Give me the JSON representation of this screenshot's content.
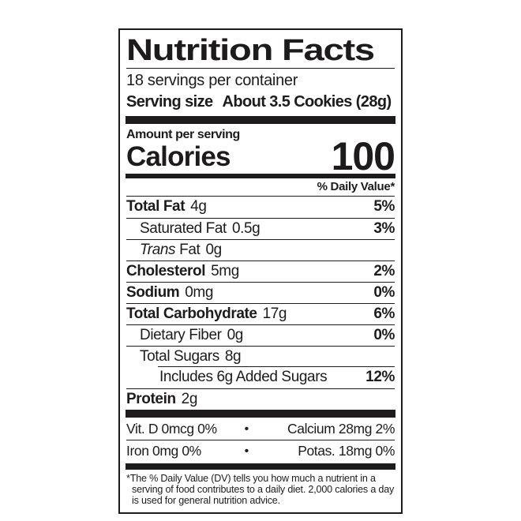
{
  "colors": {
    "ink": "#1d1b1b",
    "background": "#ffffff"
  },
  "label": {
    "title": "Nutrition Facts",
    "servings_per_container": "18 servings per container",
    "serving_size": {
      "label": "Serving size",
      "value": "About 3.5 Cookies (28g)"
    },
    "calories": {
      "heading": "Amount per serving",
      "label": "Calories",
      "value": "100"
    },
    "daily_value_header": "% Daily Value*",
    "nutrients": [
      {
        "name": "Total Fat",
        "amount": "4g",
        "dv": "5%"
      },
      {
        "name": "Saturated Fat",
        "amount": "0.5g",
        "dv": "3%"
      },
      {
        "name_italic": "Trans",
        "name": "Fat",
        "amount": "0g",
        "dv": ""
      },
      {
        "name": "Cholesterol",
        "amount": "5mg",
        "dv": "2%"
      },
      {
        "name": "Sodium",
        "amount": "0mg",
        "dv": "0%"
      },
      {
        "name": "Total Carbohydrate",
        "amount": "17g",
        "dv": "6%"
      },
      {
        "name": "Dietary Fiber",
        "amount": "0g",
        "dv": "0%"
      },
      {
        "name": "Total Sugars",
        "amount": "8g",
        "dv": ""
      },
      {
        "name": "Includes 6g Added Sugars",
        "amount": "",
        "dv": "12%"
      },
      {
        "name": "Protein",
        "amount": "2g",
        "dv": ""
      }
    ],
    "micronutrients": [
      {
        "left": "Vit. D 0mcg 0%",
        "separator": "•",
        "right": "Calcium 28mg 2%"
      },
      {
        "left": "Iron 0mg 0%",
        "separator": "•",
        "right": "Potas. 18mg 0%"
      }
    ],
    "footnote": "*The % Daily Value (DV) tells you how much a nutrient in a serving of food contributes to a daily diet. 2,000 calories a day is used for general nutrition advice."
  }
}
